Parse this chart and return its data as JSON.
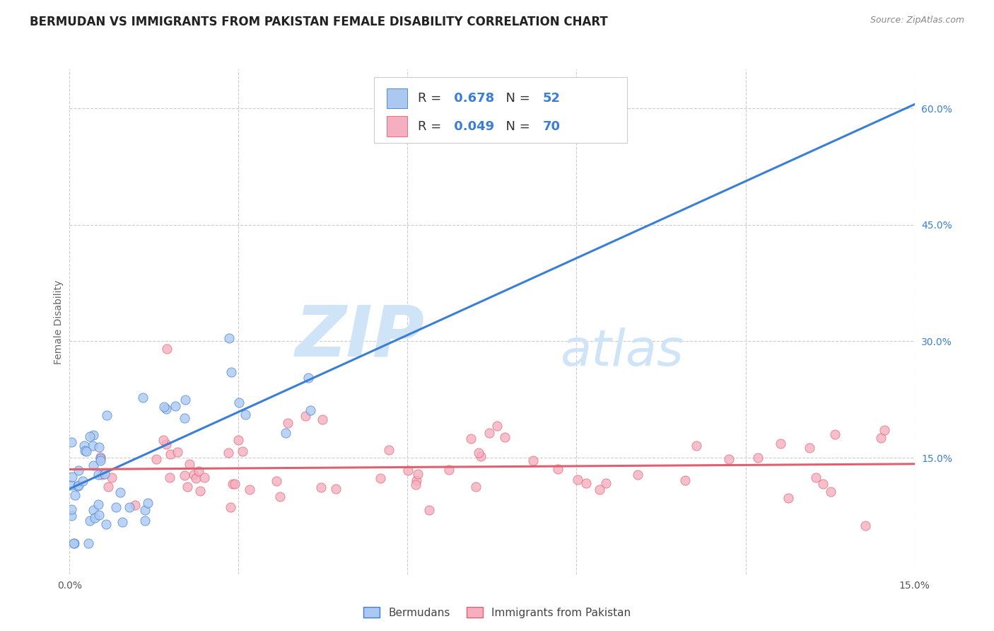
{
  "title": "BERMUDAN VS IMMIGRANTS FROM PAKISTAN FEMALE DISABILITY CORRELATION CHART",
  "source": "Source: ZipAtlas.com",
  "ylabel": "Female Disability",
  "xlim": [
    0.0,
    0.15
  ],
  "ylim": [
    0.0,
    0.65
  ],
  "x_ticks": [
    0.0,
    0.03,
    0.06,
    0.09,
    0.12,
    0.15
  ],
  "x_tick_labels": [
    "0.0%",
    "",
    "",
    "",
    "",
    "15.0%"
  ],
  "y_ticks_right": [
    0.15,
    0.3,
    0.45,
    0.6
  ],
  "y_tick_labels_right": [
    "15.0%",
    "30.0%",
    "45.0%",
    "60.0%"
  ],
  "legend_label_1": "Bermudans",
  "legend_label_2": "Immigrants from Pakistan",
  "R1": 0.678,
  "N1": 52,
  "R2": 0.049,
  "N2": 70,
  "color_blue": "#adc8f0",
  "color_pink": "#f5afc0",
  "line_color_blue": "#3a7fd5",
  "line_color_pink": "#e06070",
  "legend_R_color": "#3a7fd5",
  "watermark_color": "#d0e4f8",
  "background_color": "#ffffff",
  "grid_color": "#cccccc",
  "blue_line_x0": 0.0,
  "blue_line_y0": 0.11,
  "blue_line_x1": 0.15,
  "blue_line_y1": 0.605,
  "pink_line_x0": 0.0,
  "pink_line_y0": 0.135,
  "pink_line_x1": 0.15,
  "pink_line_y1": 0.142,
  "seed": 12345
}
